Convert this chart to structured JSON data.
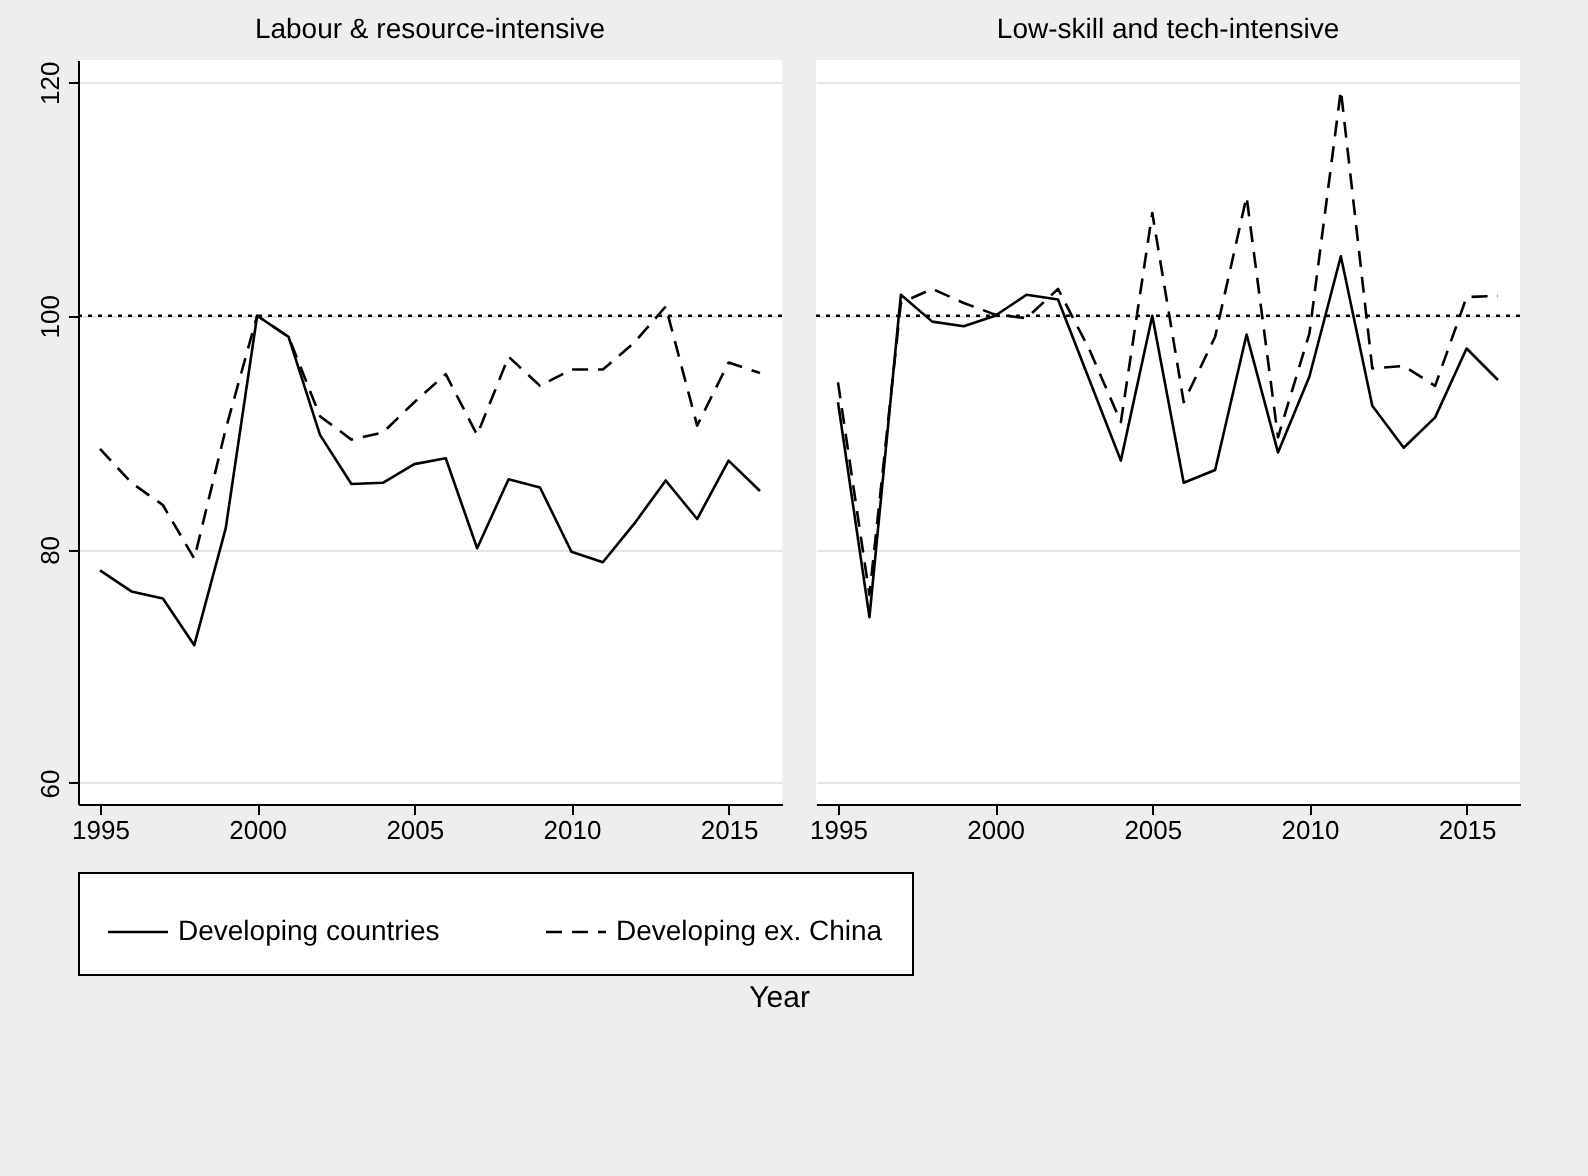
{
  "chart_data": [
    {
      "type": "line",
      "title": "Labour & resource-intensive",
      "xlabel": "Year",
      "x": [
        1995,
        1996,
        1997,
        1998,
        1999,
        2000,
        2001,
        2002,
        2003,
        2004,
        2005,
        2006,
        2007,
        2008,
        2009,
        2010,
        2011,
        2012,
        2013,
        2014,
        2015,
        2016
      ],
      "xlim": [
        1994.3,
        2016.7
      ],
      "xticks": [
        1995,
        2000,
        2005,
        2010,
        2015
      ],
      "ylim": [
        58.2,
        121.9
      ],
      "yticks": [
        60,
        80,
        100,
        120
      ],
      "grid": "y",
      "legend": "bottom",
      "series": [
        {
          "name": "Developing countries",
          "color": "#000000",
          "line_style": "solid",
          "values": [
            78.2,
            76.4,
            75.8,
            71.8,
            81.8,
            100,
            98.2,
            89.8,
            85.6,
            85.7,
            87.3,
            87.8,
            80.1,
            86.0,
            85.3,
            79.8,
            78.9,
            82.2,
            85.9,
            82.6,
            87.6,
            85.0
          ]
        },
        {
          "name": "Developing ex. China",
          "color": "#000000",
          "line_style": "dashed",
          "values": [
            88.6,
            85.7,
            83.8,
            79.2,
            90.3,
            100,
            98.2,
            91.4,
            89.4,
            90.0,
            92.6,
            95.0,
            89.8,
            96.5,
            94.0,
            95.4,
            95.4,
            97.7,
            100.8,
            90.6,
            96.0,
            95.1
          ]
        }
      ],
      "ref_lines": [
        {
          "axis": "y",
          "value": 100,
          "line_style": "dotted"
        }
      ]
    },
    {
      "type": "line",
      "title": "Low-skill and tech-intensive",
      "x": [
        1995,
        1996,
        1997,
        1998,
        1999,
        2000,
        2001,
        2002,
        2003,
        2004,
        2005,
        2006,
        2007,
        2008,
        2009,
        2010,
        2011,
        2012,
        2013,
        2014,
        2015,
        2016
      ],
      "xlim": [
        1994.3,
        2016.7
      ],
      "xticks": [
        1995,
        2000,
        2005,
        2010,
        2015
      ],
      "ylim": [
        58.2,
        121.9
      ],
      "yticks": [
        60,
        80,
        100,
        120
      ],
      "grid": "y",
      "tick_labels": "x",
      "series": [
        {
          "name": "Developing countries",
          "color": "#000000",
          "line_style": "solid",
          "values": [
            92.6,
            74.2,
            101.8,
            99.5,
            99.1,
            100,
            101.8,
            101.4,
            94.5,
            87.6,
            100,
            85.7,
            86.8,
            98.4,
            88.3,
            94.8,
            105.1,
            92.3,
            88.7,
            91.3,
            97.2,
            94.5
          ]
        },
        {
          "name": "Developing ex. China",
          "color": "#000000",
          "line_style": "dashed",
          "values": [
            94.3,
            76.1,
            101.1,
            102.3,
            101.1,
            100.1,
            99.8,
            102.3,
            97.1,
            90.9,
            108.8,
            92.6,
            98.2,
            110.2,
            89.6,
            98.5,
            119.3,
            95.5,
            95.7,
            94.0,
            101.6,
            101.7
          ]
        }
      ],
      "ref_lines": [
        {
          "axis": "y",
          "value": 100,
          "line_style": "dotted"
        }
      ]
    }
  ]
}
